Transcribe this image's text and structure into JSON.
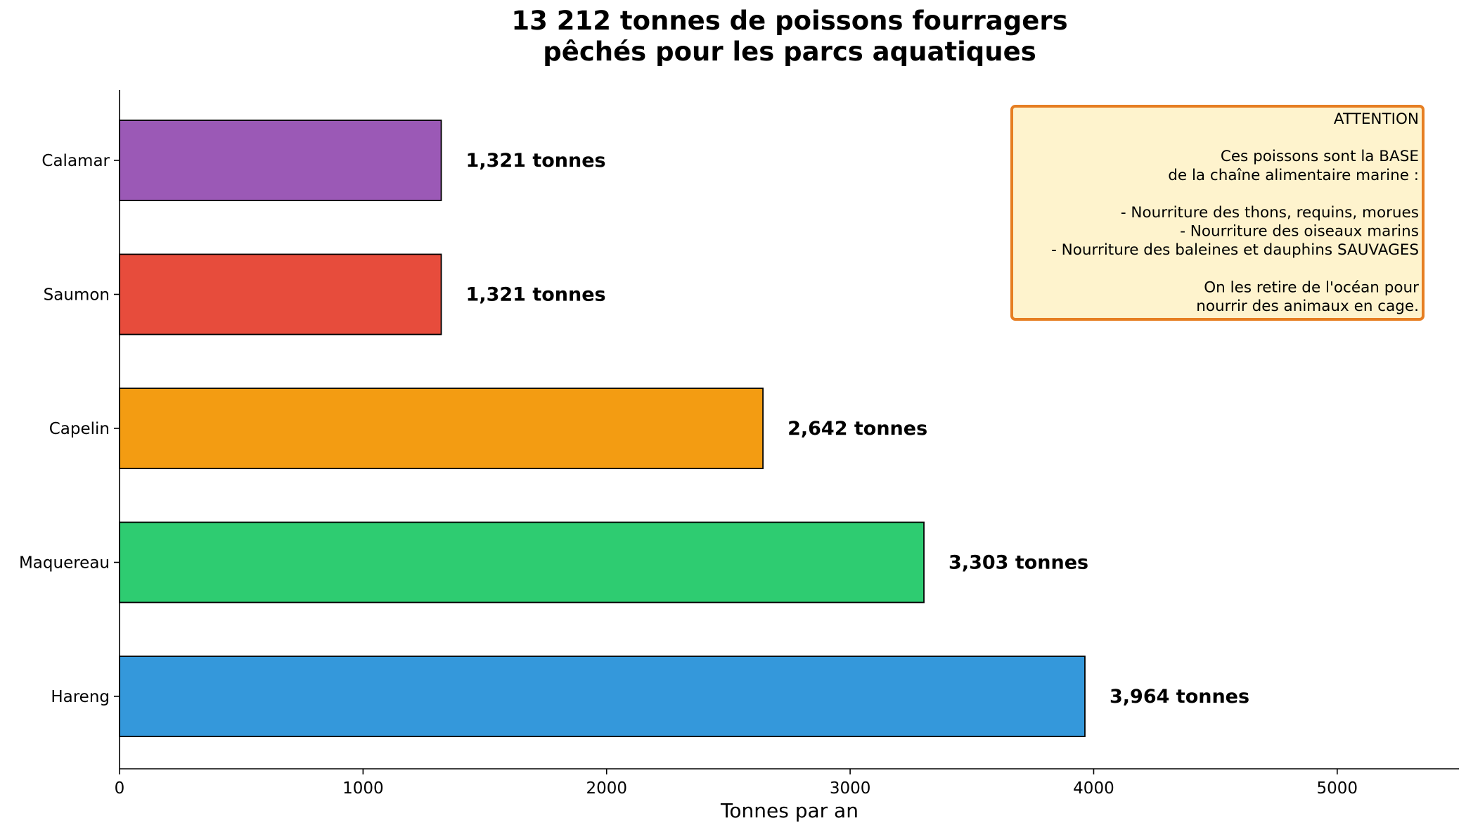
{
  "chart_data": {
    "type": "bar",
    "orientation": "horizontal",
    "title_lines": [
      "13 212 tonnes de poissons fourragers",
      "pêchés pour les parcs aquatiques"
    ],
    "xlabel": "Tonnes par an",
    "ylabel": "",
    "xlim": [
      0,
      5500
    ],
    "x_ticks": [
      0,
      1000,
      2000,
      3000,
      4000,
      5000
    ],
    "categories": [
      "Hareng",
      "Maquereau",
      "Capelin",
      "Saumon",
      "Calamar"
    ],
    "values": [
      3964,
      3303,
      2642,
      1321,
      1321
    ],
    "value_labels": [
      "3,964 tonnes",
      "3,303 tonnes",
      "2,642 tonnes",
      "1,321 tonnes",
      "1,321 tonnes"
    ],
    "colors": [
      "#3498db",
      "#2ecc71",
      "#f39c12",
      "#e74c3c",
      "#9b59b6"
    ],
    "grid": false,
    "annotation": {
      "lines": [
        "ATTENTION",
        "",
        "Ces poissons sont la BASE",
        "de la chaîne alimentaire marine :",
        "",
        "- Nourriture des thons, requins, morues",
        "- Nourriture des oiseaux marins",
        "- Nourriture des baleines et dauphins SAUVAGES",
        "",
        "On les retire de l'océan pour",
        "nourrir des animaux en cage."
      ],
      "placement": "top-right",
      "background": "#fef3cd",
      "border": "#e67e22"
    }
  }
}
